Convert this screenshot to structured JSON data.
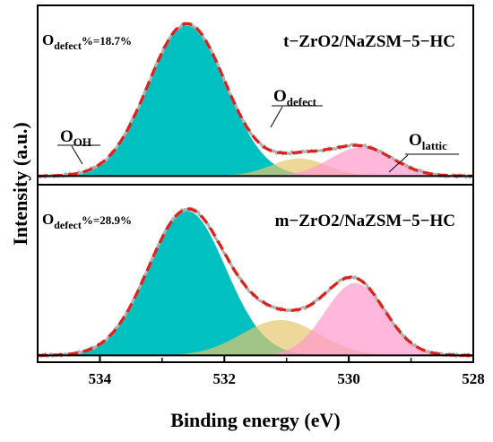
{
  "chart_data": [
    {
      "type": "area",
      "panel": "top",
      "sample_label": "t−ZrO2/NaZSM−5−HC",
      "defect_fraction": {
        "prefix": "O",
        "sub": "defect",
        "suffix": "%=18.7%"
      },
      "annotations": [
        {
          "name": "O",
          "sub": "OH",
          "points_to_x": 533.6
        },
        {
          "name": "O",
          "sub": "defect",
          "points_to_x": 530.9
        },
        {
          "name": "O",
          "sub": "lattic",
          "points_to_x": 529.4
        }
      ],
      "baseline": 0.02,
      "peaks": [
        {
          "component": "O_OH",
          "center": 532.6,
          "height": 0.95,
          "sigma": 0.62,
          "color": "#00c0c0"
        },
        {
          "component": "O_defect",
          "center": 530.8,
          "height": 0.11,
          "sigma": 0.45,
          "color": "#e6c86e"
        },
        {
          "component": "O_lattic",
          "center": 529.8,
          "height": 0.18,
          "sigma": 0.5,
          "color": "#ff99cc"
        }
      ],
      "ylim": [
        0,
        1.05
      ]
    },
    {
      "type": "area",
      "panel": "bottom",
      "sample_label": "m−ZrO2/NaZSM−5−HC",
      "defect_fraction": {
        "prefix": "O",
        "sub": "defect",
        "suffix": "%=28.9%"
      },
      "baseline": 0.02,
      "peaks": [
        {
          "component": "O_OH",
          "center": 532.6,
          "height": 0.9,
          "sigma": 0.62,
          "color": "#00c0c0"
        },
        {
          "component": "O_defect",
          "center": 531.1,
          "height": 0.22,
          "sigma": 0.62,
          "color": "#e6c86e"
        },
        {
          "component": "O_lattic",
          "center": 529.9,
          "height": 0.45,
          "sigma": 0.48,
          "color": "#ff99cc"
        }
      ],
      "ylim": [
        0,
        1.05
      ]
    }
  ],
  "axes": {
    "xlabel": "Binding energy (eV)",
    "ylabel": "Intensity (a.u.)",
    "xlim": [
      535,
      528
    ],
    "x_ticks": [
      534,
      532,
      530,
      528
    ],
    "x_reversed": true
  },
  "line_styles": {
    "fit": {
      "color": "#e0201b",
      "dash": "dashed"
    },
    "raw": {
      "color": "#b0b0b0"
    }
  }
}
